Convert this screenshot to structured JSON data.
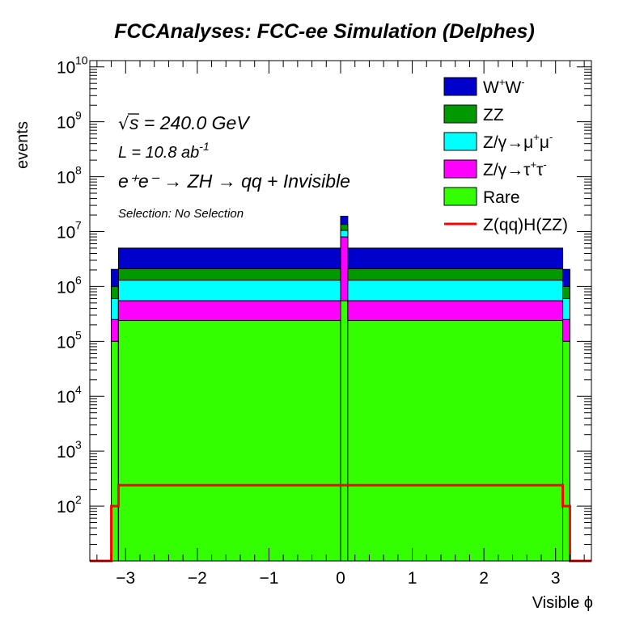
{
  "chart_data": {
    "type": "bar",
    "title": "FCCAnalyses: FCC-ee Simulation (Delphes)",
    "xlabel": "Visible ϕ",
    "ylabel": "events",
    "xlim": [
      -3.5,
      3.5
    ],
    "ylim": [
      10,
      13000000000
    ],
    "yscale": "log",
    "stacked": true,
    "bin_width": 0.1,
    "xticks": [
      "−3",
      "−2",
      "−1",
      "0",
      "1",
      "2",
      "3"
    ],
    "xtick_values": [
      -3,
      -2,
      -1,
      0,
      1,
      2,
      3
    ],
    "yticks": [
      {
        "base": "10",
        "exp": "2",
        "value": 100
      },
      {
        "base": "10",
        "exp": "3",
        "value": 1000
      },
      {
        "base": "10",
        "exp": "4",
        "value": 10000
      },
      {
        "base": "10",
        "exp": "5",
        "value": 100000
      },
      {
        "base": "10",
        "exp": "6",
        "value": 1000000
      },
      {
        "base": "10",
        "exp": "7",
        "value": 10000000
      },
      {
        "base": "10",
        "exp": "8",
        "value": 100000000
      },
      {
        "base": "10",
        "exp": "9",
        "value": 1000000000
      },
      {
        "base": "10",
        "exp": "10",
        "value": 10000000000
      }
    ],
    "bins": [
      {
        "x_low": -3.2,
        "x_high": -3.1,
        "cumulative": {
          "Rare": 100000,
          "Z/γ→τ+τ-": 250000,
          "Z/γ→μ+μ-": 600000,
          "ZZ": 1000000,
          "W+W-": 2050000
        },
        "signal": 100
      },
      {
        "x_low": -3.1,
        "x_high": 0.0,
        "cumulative": {
          "Rare": 240000,
          "Z/γ→τ+τ-": 550000,
          "Z/γ→μ+μ-": 1300000,
          "ZZ": 2100000,
          "W+W-": 5000000
        },
        "signal": 240
      },
      {
        "x_low": 0.0,
        "x_high": 0.1,
        "cumulative": {
          "Rare": 550000,
          "Z/γ→τ+τ-": 8000000,
          "Z/γ→μ+μ-": 10500000,
          "ZZ": 13500000,
          "W+W-": 19000000
        },
        "signal": 240
      },
      {
        "x_low": 0.1,
        "x_high": 3.1,
        "cumulative": {
          "Rare": 240000,
          "Z/γ→τ+τ-": 550000,
          "Z/γ→μ+μ-": 1300000,
          "ZZ": 2100000,
          "W+W-": 5000000
        },
        "signal": 240
      },
      {
        "x_low": 3.1,
        "x_high": 3.2,
        "cumulative": {
          "Rare": 100000,
          "Z/γ→τ+τ-": 250000,
          "Z/γ→μ+μ-": 600000,
          "ZZ": 1000000,
          "W+W-": 2050000
        },
        "signal": 100
      }
    ],
    "stack_order_top_to_bottom": [
      "W+W-",
      "ZZ",
      "Z/γ→μ+μ-",
      "Z/γ→τ+τ-",
      "Rare"
    ],
    "colors": {
      "W+W-": "#0000cc",
      "ZZ": "#009900",
      "Z/γ→μ+μ-": "#00ffff",
      "Z/γ→τ+τ-": "#ff00ff",
      "Rare": "#33ff00",
      "signal": "#ff0000"
    },
    "legend_position": "top-right",
    "legend": [
      {
        "key": "W+W-",
        "kind": "fill",
        "base": "W",
        "sup1": "+",
        "mid": "W",
        "sup2": "-"
      },
      {
        "key": "ZZ",
        "kind": "fill",
        "text": "ZZ"
      },
      {
        "key": "Z/γ→μ+μ-",
        "kind": "fill",
        "base": "Z/γ→μ",
        "sup1": "+",
        "mid": "μ",
        "sup2": "-"
      },
      {
        "key": "Z/γ→τ+τ-",
        "kind": "fill",
        "base": "Z/γ→τ",
        "sup1": "+",
        "mid": "τ",
        "sup2": "-"
      },
      {
        "key": "Rare",
        "kind": "fill",
        "text": "Rare"
      },
      {
        "key": "signal",
        "kind": "line",
        "text": "Z(qq)H(ZZ)"
      }
    ],
    "annotations": {
      "sqrt_s": "s = 240.0 GeV",
      "lumi_prefix": "L = 10.8 ab",
      "lumi_exp": "-1",
      "process": "e⁺e⁻ → ZH → qq + Invisible",
      "selection": "Selection: No Selection"
    },
    "grid": false
  }
}
